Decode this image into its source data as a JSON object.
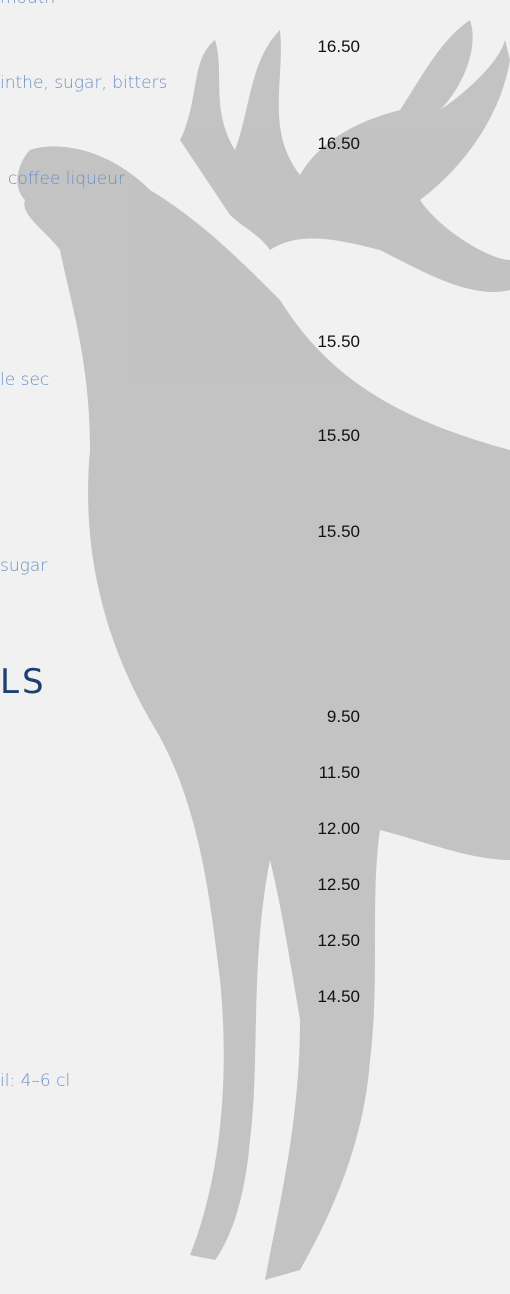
{
  "cocktails": [
    {
      "description": "mouth",
      "price": "16.50"
    },
    {
      "description": "inthe, sugar, bitters",
      "price": "16.50"
    },
    {
      "description": "coffee liqueur",
      "price": null
    },
    {
      "description": "le sec",
      "price": "15.50"
    },
    {
      "description": null,
      "price": "15.50"
    },
    {
      "description": "sugar",
      "price": "15.50"
    }
  ],
  "section": {
    "title": "LS",
    "prices": [
      "9.50",
      "11.50",
      "12.00",
      "12.50",
      "12.50",
      "14.50"
    ],
    "note": "il: 4–6 cl"
  }
}
